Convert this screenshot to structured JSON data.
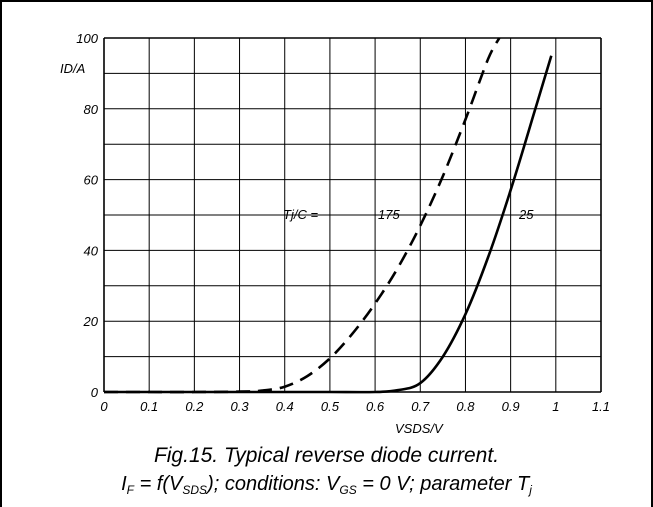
{
  "chart_data": {
    "type": "line",
    "xlabel": "VSDS/V",
    "ylabel": "ID/A",
    "xlim": [
      0,
      1.1
    ],
    "ylim": [
      0,
      100
    ],
    "x_ticks": [
      "0",
      "0.1",
      "0.2",
      "0.3",
      "0.4",
      "0.5",
      "0.6",
      "0.7",
      "0.8",
      "0.9",
      "1",
      "1.1"
    ],
    "y_ticks": [
      "0",
      "20",
      "40",
      "60",
      "80",
      "100"
    ],
    "grid": true,
    "parameter_label": "Tj/C =",
    "series": [
      {
        "name": "175",
        "style": "dashed",
        "x": [
          0.0,
          0.1,
          0.2,
          0.3,
          0.35,
          0.4,
          0.45,
          0.5,
          0.55,
          0.6,
          0.65,
          0.7,
          0.75,
          0.8,
          0.85,
          0.875
        ],
        "y": [
          0.0,
          0.0,
          0.0,
          0.1,
          0.4,
          1.5,
          4.5,
          9.5,
          16.5,
          25,
          35,
          47,
          61,
          77,
          94,
          100
        ]
      },
      {
        "name": "25",
        "style": "solid",
        "x": [
          0.0,
          0.2,
          0.4,
          0.5,
          0.6,
          0.65,
          0.7,
          0.75,
          0.8,
          0.85,
          0.9,
          0.95,
          0.99
        ],
        "y": [
          0.0,
          0.0,
          0.0,
          0.0,
          0.0,
          0.5,
          2.5,
          10,
          22,
          38,
          57,
          78,
          95
        ]
      }
    ]
  },
  "caption": {
    "line1": "Fig.15.   Typical reverse diode current.",
    "i": "I",
    "i_sub": "F",
    "eq1": " = f(V",
    "vsds_sub": "SDS",
    "cond": "); conditions: V",
    "vgs_sub": "GS",
    "eq2": " = 0 V; parameter T",
    "tj_sub": "j"
  }
}
